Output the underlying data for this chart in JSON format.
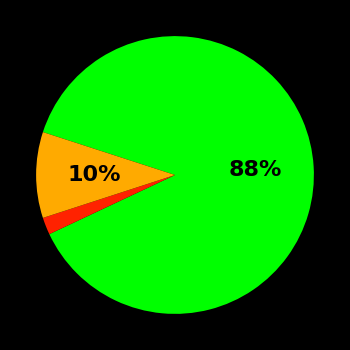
{
  "slices": [
    88,
    2,
    10
  ],
  "colors": [
    "#00ff00",
    "#ff2200",
    "#ffaa00"
  ],
  "background_color": "#000000",
  "text_color": "#000000",
  "startangle": 162,
  "figsize": [
    3.5,
    3.5
  ],
  "dpi": 100
}
